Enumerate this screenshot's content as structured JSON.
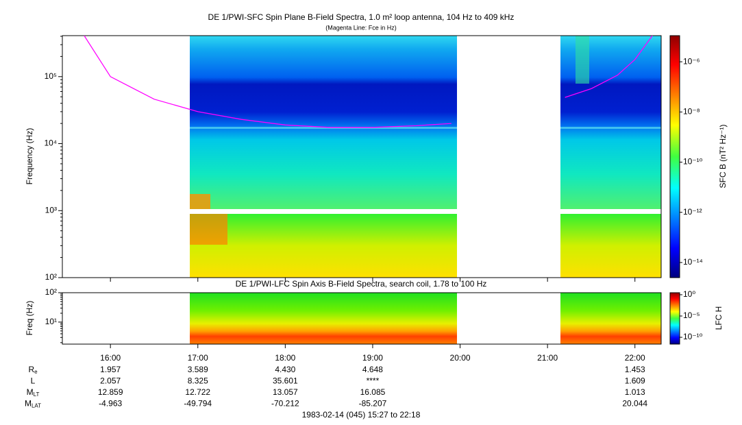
{
  "chart_data": [
    {
      "type": "line",
      "title": "DE 1/PWI-SFC  Spin Plane B-Field Spectra, 1.0 m² loop antenna, 104 Hz to 409 kHz",
      "subtitle": "(Magenta Line: Fce in Hz)",
      "ylabel": "Frequency (Hz)",
      "log_y": true,
      "xlim": [
        15.45,
        22.3
      ],
      "xticks": [
        16,
        17,
        18,
        19,
        20,
        21,
        22
      ],
      "ylim": [
        100,
        409000
      ],
      "yticks": [
        {
          "value": 100,
          "label": "10²"
        },
        {
          "value": 1000,
          "label": "10³"
        },
        {
          "value": 10000,
          "label": "10⁴"
        },
        {
          "value": 100000,
          "label": "10⁵"
        }
      ],
      "series": [
        {
          "color": "#ff00ff",
          "x": [
            15.7,
            16.0,
            16.5,
            17.0,
            17.5,
            18.0,
            18.5,
            19.0,
            19.5,
            19.9,
            20.5,
            21.2,
            21.5,
            21.8,
            22.0,
            22.2
          ],
          "values": [
            409000,
            100000,
            46000,
            30000,
            23000,
            19000,
            17500,
            17500,
            18500,
            20000,
            null,
            49000,
            66000,
            105000,
            180000,
            409000
          ]
        }
      ],
      "colorbar": {
        "label": "SFC B (nT² Hz⁻¹)",
        "zlim": [
          2.5e-15,
          1.1e-05
        ],
        "zticks": [
          {
            "value": 1e-14,
            "label": "10⁻¹⁴"
          },
          {
            "value": 1e-12,
            "label": "10⁻¹²"
          },
          {
            "value": 1e-10,
            "label": "10⁻¹⁰"
          },
          {
            "value": 1e-08,
            "label": "10⁻⁸"
          },
          {
            "value": 1e-06,
            "label": "10⁻⁶"
          }
        ]
      }
    },
    {
      "type": "spectrogram",
      "title": "DE 1/PWI-LFC  Spin Axis B-Field Spectra, search coil, 1.78 to 100 Hz",
      "ylabel": "Freq (Hz)",
      "log_y": true,
      "xlim": [
        15.45,
        22.3
      ],
      "xticks": [
        {
          "value": 16,
          "label": "16:00"
        },
        {
          "value": 17,
          "label": "17:00"
        },
        {
          "value": 18,
          "label": "18:00"
        },
        {
          "value": 19,
          "label": "19:00"
        },
        {
          "value": 20,
          "label": "20:00"
        },
        {
          "value": 21,
          "label": "21:00"
        },
        {
          "value": 22,
          "label": "22:00"
        }
      ],
      "ylim": [
        1.78,
        100
      ],
      "yticks": [
        {
          "value": 10,
          "label": "10¹"
        },
        {
          "value": 100,
          "label": "10²"
        }
      ],
      "colorbar": {
        "label": "LFC H",
        "zlim": [
          2.5e-12,
          3
        ],
        "zticks": [
          {
            "value": 1e-10,
            "label": "10⁻¹⁰"
          },
          {
            "value": 1e-05,
            "label": "10⁻⁵"
          },
          {
            "value": 1,
            "label": "10⁰"
          }
        ]
      }
    }
  ],
  "ephemeris": {
    "rows": [
      {
        "label": "R",
        "sub": "e",
        "values": [
          "1.957",
          "3.589",
          "4.430",
          "4.648",
          "1.453"
        ]
      },
      {
        "label": "L",
        "values": [
          "2.057",
          "8.325",
          "35.601",
          "****",
          "1.609"
        ]
      },
      {
        "label": "M",
        "sub": "LT",
        "values": [
          "12.859",
          "12.722",
          "13.057",
          "16.085",
          "1.013"
        ]
      },
      {
        "label": "M",
        "sub": "LAT",
        "values": [
          "-4.963",
          "-49.794",
          "-70.212",
          "-85.207",
          "20.044"
        ]
      }
    ],
    "footer": "1983-02-14 (045) 15:27 to 22:18"
  }
}
